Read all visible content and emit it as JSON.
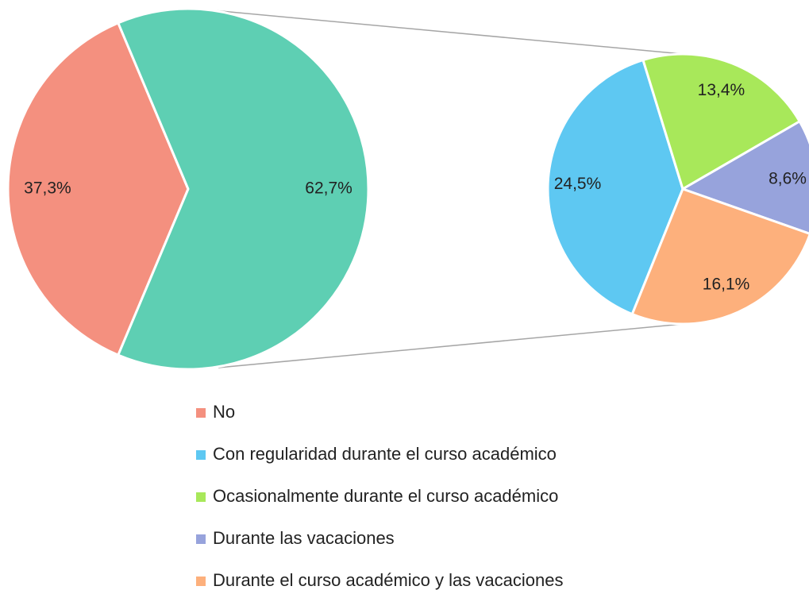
{
  "chart_data": {
    "type": "pie_of_pie",
    "categories": [
      "No",
      "Con regularidad durante el curso académico",
      "Ocasionalmente durante el curso académico",
      "Durante las vacaciones",
      "Durante el curso académico y las vacaciones"
    ],
    "values": [
      37.3,
      24.5,
      13.4,
      8.6,
      16.1
    ],
    "value_labels": [
      "37,3%",
      "24,5%",
      "13,4%",
      "8,6%",
      "16,1%"
    ],
    "colors": [
      "#f4907f",
      "#5ec8f2",
      "#a8e85a",
      "#97a3dc",
      "#fdb07c"
    ],
    "other": {
      "value": 62.7,
      "label": "62,7%",
      "color": "#5ecfb3"
    },
    "legend": "bottom"
  }
}
